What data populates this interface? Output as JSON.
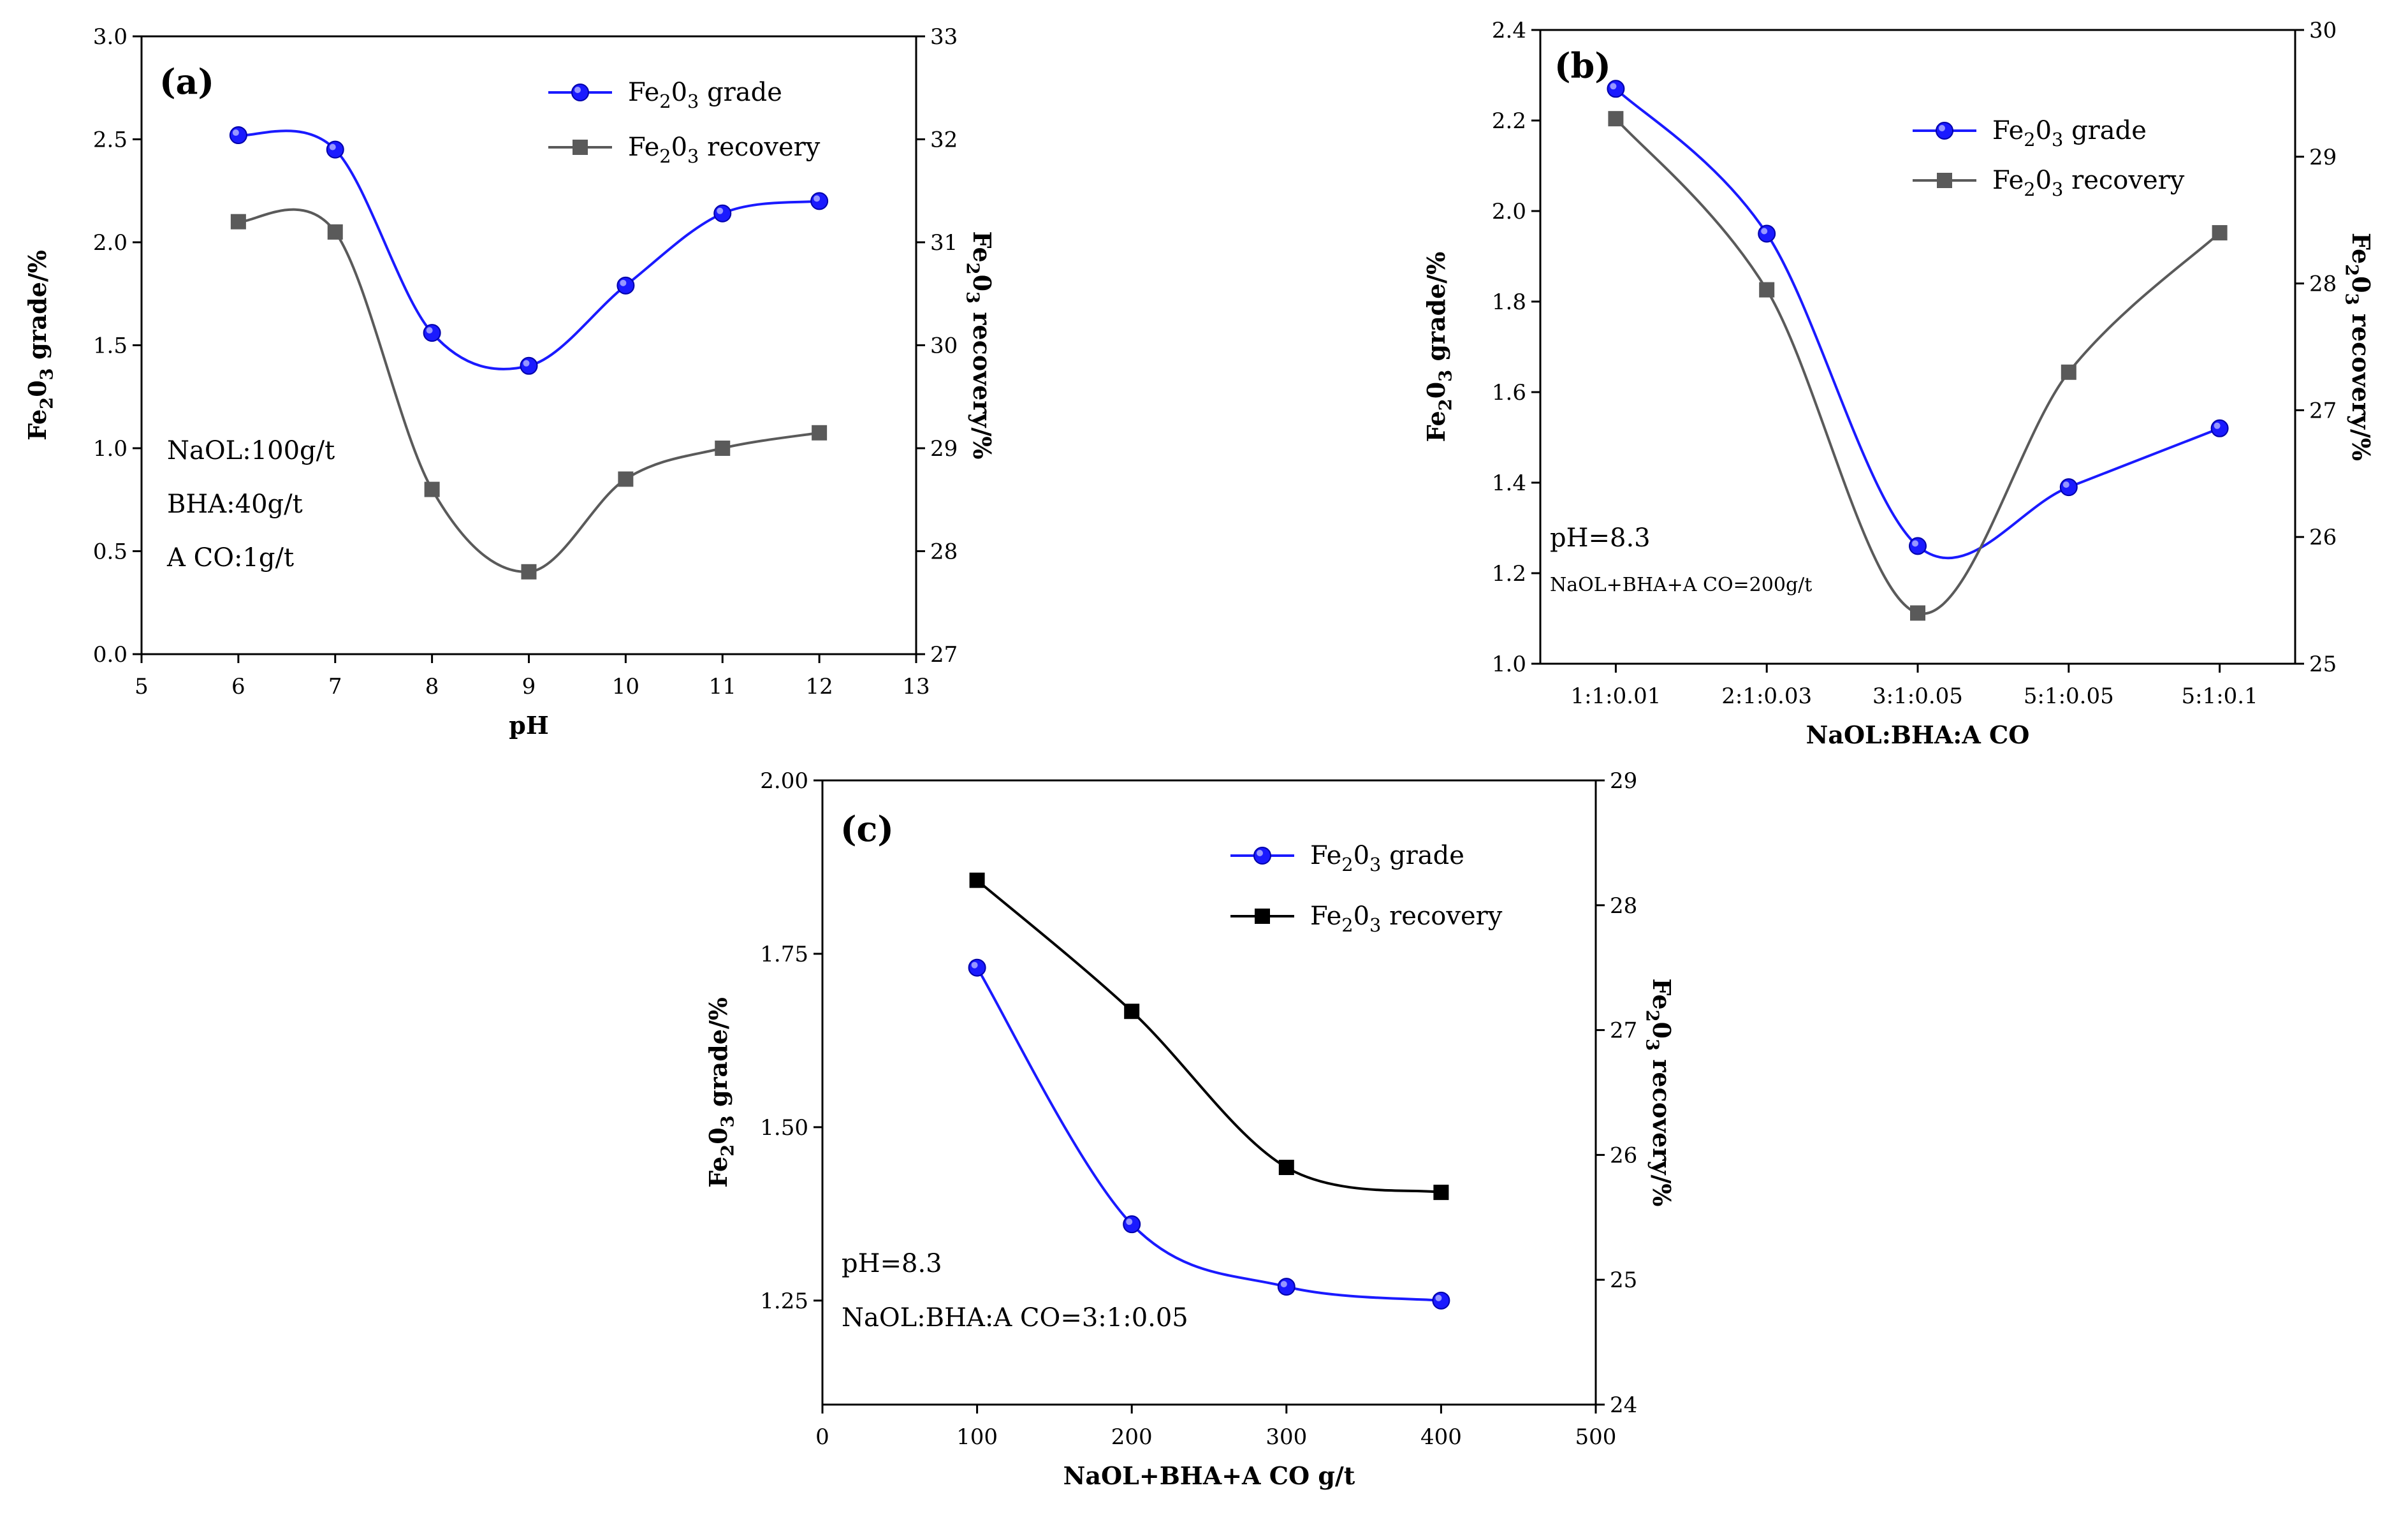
{
  "chart_data": [
    {
      "panel": "(a)",
      "type": "line",
      "smooth": true,
      "xlabel": "pH",
      "ylabel_left": {
        "pre": "Fe",
        "sub1": "2",
        "mid": "0",
        "sub2": "3",
        "post": " grade/%"
      },
      "ylabel_right": {
        "pre": "Fe",
        "sub1": "2",
        "mid": "0",
        "sub2": "3",
        "post": " recovery/%"
      },
      "x": [
        6,
        7,
        8,
        9,
        10,
        11,
        12
      ],
      "xlim": [
        5,
        13
      ],
      "xticks": [
        "5",
        "6",
        "7",
        "8",
        "9",
        "10",
        "11",
        "12",
        "13"
      ],
      "ylim_left": [
        0,
        3
      ],
      "yticks_left": [
        "0.0",
        "0.5",
        "1.0",
        "1.5",
        "2.0",
        "2.5",
        "3.0"
      ],
      "ylim_right": [
        27,
        33
      ],
      "yticks_right": [
        "27",
        "28",
        "29",
        "30",
        "31",
        "32",
        "33"
      ],
      "series": [
        {
          "name": "Fe2O3 grade",
          "legend": {
            "pre": "Fe",
            "sub1": "2",
            "mid": "0",
            "sub2": "3",
            "post": " grade"
          },
          "axis": "left",
          "color": "#1a1aff",
          "marker": "circle",
          "values": [
            2.52,
            2.45,
            1.56,
            1.4,
            1.79,
            2.14,
            2.2
          ]
        },
        {
          "name": "Fe2O3 recovery",
          "legend": {
            "pre": "Fe",
            "sub1": "2",
            "mid": "0",
            "sub2": "3",
            "post": " recovery"
          },
          "axis": "right",
          "color": "#5a5a5a",
          "marker": "square",
          "values": [
            31.2,
            31.1,
            28.6,
            27.8,
            28.7,
            29.0,
            29.15
          ]
        }
      ],
      "annotations": [
        "NaOL:100g/t",
        "BHA:40g/t",
        "A CO:1g/t"
      ],
      "legend_position": "top-right"
    },
    {
      "panel": "(b)",
      "type": "line",
      "smooth": true,
      "xlabel": "NaOL:BHA:A CO",
      "ylabel_left": {
        "pre": "Fe",
        "sub1": "2",
        "mid": "0",
        "sub2": "3",
        "post": " grade/%"
      },
      "ylabel_right": {
        "pre": "Fe",
        "sub1": "2",
        "mid": "0",
        "sub2": "3",
        "post": " recovery/%"
      },
      "categories": [
        "1:1:0.01",
        "2:1:0.03",
        "3:1:0.05",
        "5:1:0.05",
        "5:1:0.1"
      ],
      "ylim_left": [
        1.0,
        2.4
      ],
      "yticks_left": [
        "1.0",
        "1.2",
        "1.4",
        "1.6",
        "1.8",
        "2.0",
        "2.2",
        "2.4"
      ],
      "ylim_right": [
        25,
        30
      ],
      "yticks_right": [
        "25",
        "26",
        "27",
        "28",
        "29",
        "30"
      ],
      "series": [
        {
          "name": "Fe2O3 grade",
          "legend": {
            "pre": "Fe",
            "sub1": "2",
            "mid": "0",
            "sub2": "3",
            "post": " grade"
          },
          "axis": "left",
          "color": "#1a1aff",
          "marker": "circle",
          "values": [
            2.27,
            1.95,
            1.26,
            1.39,
            1.52
          ]
        },
        {
          "name": "Fe2O3 recovery",
          "legend": {
            "pre": "Fe",
            "sub1": "2",
            "mid": "0",
            "sub2": "3",
            "post": " recovery"
          },
          "axis": "right",
          "color": "#5a5a5a",
          "marker": "square",
          "values": [
            29.3,
            27.95,
            25.4,
            27.3,
            28.4
          ]
        }
      ],
      "annotations": [
        "pH=8.3",
        "NaOL+BHA+A CO=200g/t"
      ],
      "legend_position": "top-right"
    },
    {
      "panel": "(c)",
      "type": "line",
      "smooth": true,
      "xlabel": "NaOL+BHA+A CO g/t",
      "ylabel_left": {
        "pre": "Fe",
        "sub1": "2",
        "mid": "0",
        "sub2": "3",
        "post": " grade/%"
      },
      "ylabel_right": {
        "pre": "Fe",
        "sub1": "2",
        "mid": "0",
        "sub2": "3",
        "post": " recovery/%"
      },
      "x": [
        100,
        200,
        300,
        400
      ],
      "xlim": [
        0,
        500
      ],
      "xticks": [
        "0",
        "100",
        "200",
        "300",
        "400",
        "500"
      ],
      "ylim_left": [
        1.1,
        2.0
      ],
      "yticks_left": [
        "1.25",
        "1.50",
        "1.75",
        "2.00"
      ],
      "ylim_right": [
        24,
        29
      ],
      "yticks_right": [
        "24",
        "25",
        "26",
        "27",
        "28",
        "29"
      ],
      "series": [
        {
          "name": "Fe2O3 grade",
          "legend": {
            "pre": "Fe",
            "sub1": "2",
            "mid": "0",
            "sub2": "3",
            "post": " grade"
          },
          "axis": "left",
          "color": "#1a1aff",
          "marker": "circle",
          "values": [
            1.73,
            1.36,
            1.27,
            1.25
          ]
        },
        {
          "name": "Fe2O3 recovery",
          "legend": {
            "pre": "Fe",
            "sub1": "2",
            "mid": "0",
            "sub2": "3",
            "post": " recovery"
          },
          "axis": "right",
          "color": "#000000",
          "marker": "square",
          "values": [
            28.2,
            27.15,
            25.9,
            25.7
          ]
        }
      ],
      "annotations": [
        "pH=8.3",
        "NaOL:BHA:A CO=3:1:0.05"
      ],
      "legend_position": "top-right"
    }
  ]
}
